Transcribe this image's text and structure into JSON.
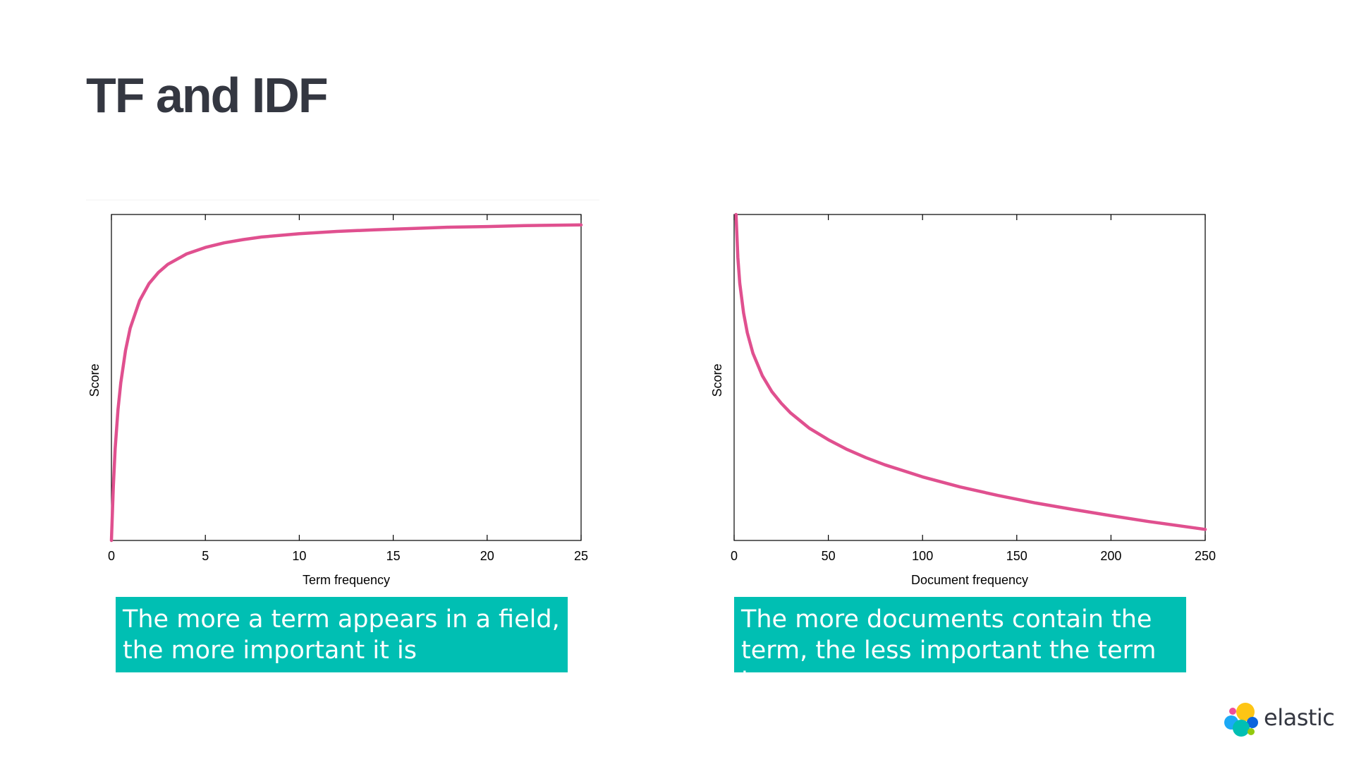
{
  "slide": {
    "title": "TF and IDF"
  },
  "captions": {
    "left": "The more a term appears in a field,\nthe more important it is",
    "right": "The more documents contain the\nterm, the less important the term is"
  },
  "logo": {
    "text": "elastic",
    "icon": "elastic-logo-icon"
  },
  "colors": {
    "title": "#343741",
    "curve": "#e0508f",
    "caption_bg": "#00bfb3",
    "caption_text": "#ffffff"
  },
  "chart_data": [
    {
      "type": "line",
      "xlabel": "Term frequency",
      "ylabel": "Score",
      "xlim": [
        0,
        25
      ],
      "ylim": [
        0,
        1
      ],
      "xticks": [
        0,
        5,
        10,
        15,
        20,
        25
      ],
      "xtick_labels": [
        "0",
        "5",
        "10",
        "15",
        "20",
        "25"
      ],
      "yticks": [],
      "grid": false,
      "series": [
        {
          "x": [
            0,
            0.1,
            0.2,
            0.35,
            0.5,
            0.75,
            1,
            1.5,
            2,
            2.5,
            3,
            4,
            5,
            6,
            7,
            8,
            10,
            12,
            14,
            16,
            18,
            20,
            22,
            25
          ],
          "y": [
            0,
            0.165,
            0.282,
            0.401,
            0.484,
            0.583,
            0.651,
            0.736,
            0.788,
            0.822,
            0.847,
            0.879,
            0.899,
            0.913,
            0.923,
            0.931,
            0.941,
            0.948,
            0.953,
            0.957,
            0.961,
            0.963,
            0.966,
            0.968
          ]
        }
      ]
    },
    {
      "type": "line",
      "xlabel": "Document frequency",
      "ylabel": "Score",
      "xlim": [
        0,
        250
      ],
      "ylim": [
        0,
        1
      ],
      "xticks": [
        0,
        50,
        100,
        150,
        200,
        250
      ],
      "xtick_labels": [
        "0",
        "50",
        "100",
        "150",
        "200",
        "250"
      ],
      "yticks": [],
      "grid": false,
      "series": [
        {
          "x": [
            1,
            2,
            3,
            5,
            7,
            10,
            15,
            20,
            25,
            30,
            40,
            50,
            60,
            70,
            80,
            100,
            120,
            140,
            160,
            180,
            200,
            220,
            250
          ],
          "y": [
            1.0,
            0.868,
            0.789,
            0.698,
            0.637,
            0.574,
            0.505,
            0.457,
            0.421,
            0.391,
            0.344,
            0.309,
            0.279,
            0.254,
            0.232,
            0.195,
            0.164,
            0.138,
            0.115,
            0.095,
            0.076,
            0.058,
            0.034
          ]
        }
      ]
    }
  ]
}
